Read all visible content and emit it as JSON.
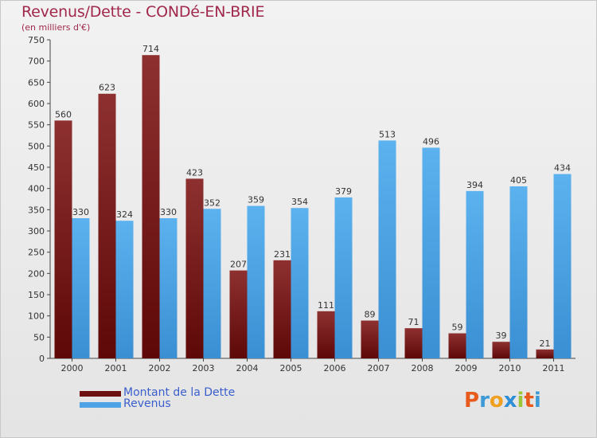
{
  "header": {
    "title": "Revenus/Dette - CONDé-EN-BRIE",
    "subtitle": "(en milliers d'€)"
  },
  "legend": {
    "items": [
      {
        "label": "Montant de la Dette",
        "color": "#7a1616"
      },
      {
        "label": "Revenus",
        "color": "#4ea3e6"
      }
    ]
  },
  "logo": {
    "letters": [
      "P",
      "r",
      "o",
      "x",
      "i",
      "t",
      "i"
    ],
    "colors": [
      "#e85a1c",
      "#3d9ad6",
      "#f0a020",
      "#2f8fd6",
      "#9cc63a",
      "#e85a1c",
      "#3d9ad6"
    ]
  },
  "chart_data": {
    "type": "bar",
    "title": "Revenus/Dette - CONDé-EN-BRIE",
    "ylabel": "(en milliers d'€)",
    "categories": [
      "2000",
      "2001",
      "2002",
      "2003",
      "2004",
      "2005",
      "2006",
      "2007",
      "2008",
      "2009",
      "2010",
      "2011"
    ],
    "series": [
      {
        "name": "Montant de la Dette",
        "color": "#7a1616",
        "values": [
          560,
          623,
          714,
          423,
          207,
          231,
          111,
          89,
          71,
          59,
          39,
          21
        ]
      },
      {
        "name": "Revenus",
        "color": "#4ea3e6",
        "values": [
          330,
          324,
          330,
          352,
          359,
          354,
          379,
          513,
          496,
          394,
          405,
          434
        ]
      }
    ],
    "ylim": [
      0,
      750
    ],
    "yticks": [
      0,
      50,
      100,
      150,
      200,
      250,
      300,
      350,
      400,
      450,
      500,
      550,
      600,
      650,
      700,
      750
    ],
    "grid": false,
    "legend_position": "bottom-left"
  }
}
